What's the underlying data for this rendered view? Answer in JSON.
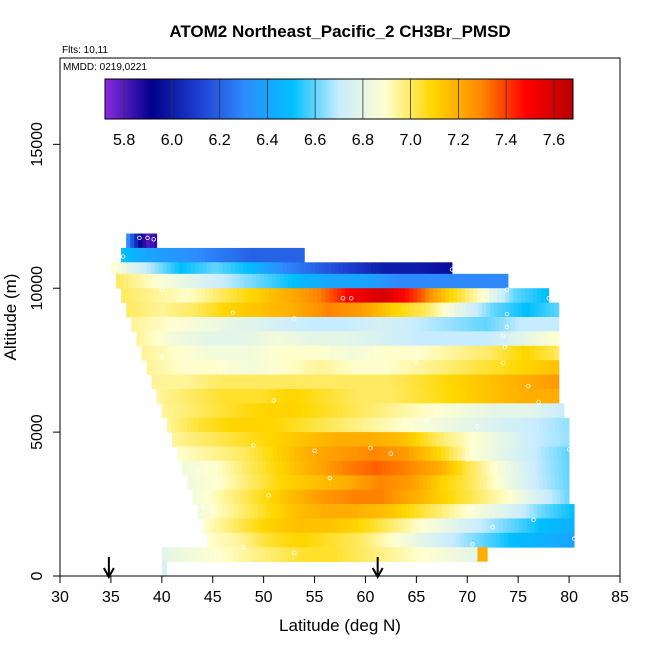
{
  "chart_data": {
    "type": "heatmap",
    "title": "ATOM2 Northeast_Pacific_2 CH3Br_PMSD",
    "flights_label": "Flts: 10,11",
    "dates_label": "MMDD: 0219,0221",
    "xlabel": "Latitude (deg N)",
    "ylabel": "Altitude (m)",
    "xlim": [
      30,
      85
    ],
    "ylim": [
      0,
      18000
    ],
    "x_ticks": [
      "30",
      "35",
      "40",
      "45",
      "50",
      "55",
      "60",
      "65",
      "70",
      "75",
      "80",
      "85"
    ],
    "y_ticks": [
      "0",
      "5000",
      "10000",
      "15000"
    ],
    "colorbar": {
      "min": 5.72,
      "max": 7.68,
      "ticks": [
        "5.8",
        "6.0",
        "6.2",
        "6.4",
        "6.6",
        "6.8",
        "7.0",
        "7.2",
        "7.4",
        "7.6"
      ],
      "colors": [
        "#8a2be2",
        "#00008b",
        "#1e3fd0",
        "#2f8cff",
        "#00bfff",
        "#c8ecff",
        "#ffffd0",
        "#ffd700",
        "#ff8c00",
        "#ff0000",
        "#b80000"
      ]
    },
    "arrows_at_latitude": [
      34.8,
      61.2
    ],
    "bands": [
      {
        "alt_top": 11900,
        "alt_bot": 11400,
        "lat_start": 36.5,
        "lat_end": 39.5,
        "values": [
          6.3,
          6.0,
          5.8,
          5.85
        ]
      },
      {
        "alt_top": 11400,
        "alt_bot": 10900,
        "lat_start": 36.0,
        "lat_end": 54.0,
        "values": [
          6.5,
          6.4,
          6.35,
          6.3,
          6.25,
          6.2,
          6.2,
          6.2
        ]
      },
      {
        "alt_top": 10900,
        "alt_bot": 10500,
        "lat_start": 35.0,
        "lat_end": 68.5,
        "values": [
          6.9,
          6.7,
          6.5,
          6.6,
          6.5,
          6.3,
          6.2,
          6.1,
          6.0,
          6.0,
          5.95
        ]
      },
      {
        "alt_top": 10500,
        "alt_bot": 10000,
        "lat_start": 35.5,
        "lat_end": 74.0,
        "values": [
          7.0,
          6.9,
          6.8,
          6.7,
          6.6,
          6.5,
          6.4,
          6.4,
          6.3,
          6.3,
          6.3,
          6.3
        ]
      },
      {
        "alt_top": 10000,
        "alt_bot": 9500,
        "lat_start": 36.0,
        "lat_end": 78.0,
        "values": [
          7.0,
          6.95,
          6.9,
          7.0,
          7.1,
          7.2,
          7.3,
          7.5,
          7.6,
          7.4,
          7.1,
          6.9,
          6.6,
          6.5
        ]
      },
      {
        "alt_top": 9500,
        "alt_bot": 9000,
        "lat_start": 36.5,
        "lat_end": 79.0,
        "values": [
          7.0,
          6.95,
          7.0,
          7.1,
          7.15,
          7.2,
          7.3,
          7.25,
          7.1,
          7.0,
          6.8,
          6.6,
          6.5,
          6.6
        ]
      },
      {
        "alt_top": 9000,
        "alt_bot": 8500,
        "lat_start": 37.0,
        "lat_end": 79.0,
        "values": [
          6.95,
          6.9,
          6.85,
          6.8,
          6.75,
          6.7,
          6.7,
          6.75,
          6.7,
          6.65,
          6.6,
          6.7,
          6.7
        ]
      },
      {
        "alt_top": 8500,
        "alt_bot": 8000,
        "lat_start": 37.5,
        "lat_end": 79.0,
        "values": [
          6.95,
          6.85,
          6.8,
          6.8,
          6.85,
          6.8,
          6.8,
          6.75,
          6.7,
          6.7,
          6.7,
          6.8,
          6.9
        ]
      },
      {
        "alt_top": 8000,
        "alt_bot": 7500,
        "lat_start": 38.0,
        "lat_end": 79.0,
        "values": [
          6.95,
          6.9,
          6.85,
          6.85,
          6.9,
          6.9,
          6.85,
          6.9,
          6.9,
          6.95,
          7.0,
          7.1,
          7.0
        ]
      },
      {
        "alt_top": 7500,
        "alt_bot": 7000,
        "lat_start": 38.5,
        "lat_end": 79.0,
        "values": [
          6.95,
          6.9,
          6.9,
          6.85,
          6.9,
          6.95,
          6.9,
          6.9,
          6.95,
          7.0,
          7.05,
          7.1,
          7.15
        ]
      },
      {
        "alt_top": 7000,
        "alt_bot": 6500,
        "lat_start": 39.0,
        "lat_end": 79.0,
        "values": [
          6.95,
          6.95,
          7.0,
          7.0,
          7.0,
          7.0,
          7.0,
          7.0,
          7.05,
          7.1,
          7.15,
          7.2,
          7.25
        ]
      },
      {
        "alt_top": 6500,
        "alt_bot": 6000,
        "lat_start": 39.5,
        "lat_end": 79.0,
        "values": [
          6.95,
          7.0,
          7.05,
          7.05,
          7.1,
          7.05,
          7.0,
          7.0,
          7.05,
          7.1,
          7.15,
          7.2,
          7.2
        ]
      },
      {
        "alt_top": 6000,
        "alt_bot": 5500,
        "lat_start": 40.0,
        "lat_end": 79.5,
        "values": [
          6.95,
          7.0,
          7.05,
          7.1,
          7.1,
          7.05,
          7.0,
          6.95,
          6.9,
          6.85,
          6.8,
          6.8,
          6.7
        ]
      },
      {
        "alt_top": 5500,
        "alt_bot": 5000,
        "lat_start": 40.5,
        "lat_end": 80.0,
        "values": [
          6.95,
          7.05,
          7.1,
          7.1,
          7.05,
          7.0,
          6.95,
          6.9,
          6.85,
          6.8,
          6.75,
          6.7,
          6.65
        ]
      },
      {
        "alt_top": 5000,
        "alt_bot": 4500,
        "lat_start": 41.0,
        "lat_end": 80.0,
        "values": [
          6.95,
          7.0,
          7.05,
          7.1,
          7.15,
          7.2,
          7.2,
          7.15,
          7.0,
          6.9,
          6.8,
          6.7,
          6.65
        ]
      },
      {
        "alt_top": 4500,
        "alt_bot": 4000,
        "lat_start": 41.5,
        "lat_end": 80.0,
        "values": [
          6.9,
          6.95,
          7.0,
          7.1,
          7.2,
          7.25,
          7.3,
          7.25,
          7.1,
          6.9,
          6.8,
          6.7,
          6.6
        ]
      },
      {
        "alt_top": 4000,
        "alt_bot": 3500,
        "lat_start": 42.0,
        "lat_end": 80.0,
        "values": [
          6.85,
          6.9,
          7.0,
          7.1,
          7.2,
          7.3,
          7.35,
          7.3,
          7.2,
          7.0,
          6.85,
          6.7,
          6.6
        ]
      },
      {
        "alt_top": 3500,
        "alt_bot": 3000,
        "lat_start": 42.5,
        "lat_end": 80.0,
        "values": [
          6.85,
          6.9,
          7.0,
          7.1,
          7.15,
          7.2,
          7.3,
          7.25,
          7.1,
          7.0,
          6.85,
          6.7,
          6.6
        ]
      },
      {
        "alt_top": 3000,
        "alt_bot": 2500,
        "lat_start": 43.0,
        "lat_end": 80.0,
        "values": [
          6.85,
          6.95,
          7.05,
          7.15,
          7.25,
          7.3,
          7.3,
          7.2,
          7.1,
          7.0,
          6.9,
          6.75,
          6.6
        ]
      },
      {
        "alt_top": 2500,
        "alt_bot": 2000,
        "lat_start": 43.5,
        "lat_end": 80.5,
        "values": [
          6.85,
          6.95,
          7.05,
          7.15,
          7.2,
          7.2,
          7.15,
          7.05,
          6.95,
          6.85,
          6.75,
          6.6,
          6.5
        ]
      },
      {
        "alt_top": 2000,
        "alt_bot": 1500,
        "lat_start": 44.0,
        "lat_end": 80.5,
        "values": [
          6.9,
          7.0,
          7.1,
          7.15,
          7.15,
          7.1,
          7.0,
          6.9,
          6.8,
          6.7,
          6.6,
          6.5,
          6.45
        ]
      },
      {
        "alt_top": 1500,
        "alt_bot": 1000,
        "lat_start": 44.5,
        "lat_end": 80.5,
        "values": [
          6.9,
          6.95,
          7.05,
          7.1,
          7.05,
          7.0,
          6.9,
          6.8,
          6.7,
          6.6,
          6.5,
          6.45,
          6.4
        ]
      },
      {
        "alt_top": 1000,
        "alt_bot": 500,
        "lat_start": 40.0,
        "lat_end": 71.0,
        "values": [
          6.8,
          6.85,
          6.9,
          6.95,
          7.0,
          7.05,
          7.05,
          7.0,
          6.95,
          6.9,
          6.85,
          6.8
        ]
      },
      {
        "alt_top": 1000,
        "alt_bot": 500,
        "lat_start": 71.0,
        "lat_end": 72.0,
        "values": [
          7.2
        ]
      },
      {
        "alt_top": 500,
        "alt_bot": 0,
        "lat_start": 40.0,
        "lat_end": 40.5,
        "values": [
          6.75
        ]
      }
    ],
    "points": [
      [
        37.8,
        11750
      ],
      [
        38.6,
        11750
      ],
      [
        39.2,
        11700
      ],
      [
        36.2,
        11100
      ],
      [
        35.5,
        10700
      ],
      [
        40.0,
        9950
      ],
      [
        68.5,
        10650
      ],
      [
        57.8,
        9650
      ],
      [
        58.6,
        9650
      ],
      [
        73.9,
        9950
      ],
      [
        78.0,
        9650
      ],
      [
        73.9,
        9100
      ],
      [
        47.0,
        9150
      ],
      [
        53.0,
        8950
      ],
      [
        73.9,
        8650
      ],
      [
        73.5,
        8350
      ],
      [
        73.5,
        7400
      ],
      [
        73.7,
        7950
      ],
      [
        40.0,
        7600
      ],
      [
        65.0,
        7400
      ],
      [
        51.0,
        6100
      ],
      [
        77.0,
        6050
      ],
      [
        76.0,
        6600
      ],
      [
        49.0,
        4550
      ],
      [
        55.0,
        4350
      ],
      [
        60.5,
        4450
      ],
      [
        62.5,
        4250
      ],
      [
        70.0,
        4050
      ],
      [
        80.0,
        4400
      ],
      [
        56.5,
        3400
      ],
      [
        50.5,
        2800
      ],
      [
        70.5,
        2350
      ],
      [
        72.5,
        1700
      ],
      [
        76.5,
        1950
      ],
      [
        70.5,
        1100
      ],
      [
        80.5,
        1300
      ],
      [
        48.0,
        1000
      ],
      [
        53.0,
        800
      ],
      [
        44.0,
        2400
      ],
      [
        43.5,
        3700
      ],
      [
        66.0,
        5400
      ],
      [
        71.0,
        5200
      ]
    ]
  }
}
